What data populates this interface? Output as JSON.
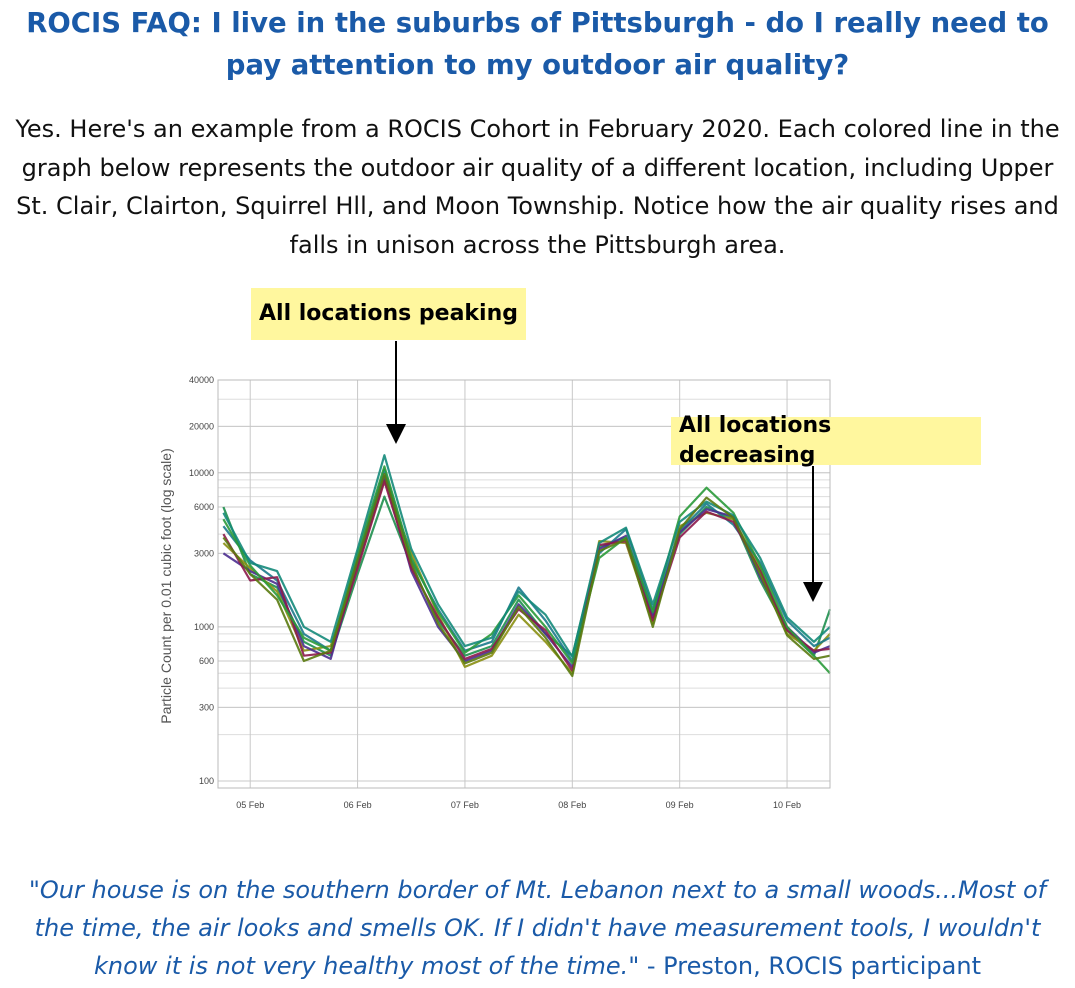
{
  "page": {
    "title": "ROCIS FAQ: I live in the suburbs of Pittsburgh - do I really need to pay attention to my outdoor air quality?",
    "intro": "Yes.  Here's an example from a ROCIS Cohort in February 2020. Each colored line in the graph below represents the outdoor air quality of a different location, including Upper St. Clair, Clairton, Squirrel Hll, and Moon Township.  Notice how the air quality rises and falls in unison across the Pittsburgh area.",
    "quote_text": "\"Our house is on the southern border of Mt. Lebanon next to a small woods...Most of the time, the air looks and smells OK.  If I didn't have measurement tools, I wouldn't know it is not very healthy most of the time.",
    "quote_attribution": "\" - Preston, ROCIS participant"
  },
  "annotations": {
    "peak_label": "All locations peaking",
    "decreasing_label": "All locations decreasing"
  },
  "chart_data": {
    "type": "line",
    "title": "",
    "xlabel": "",
    "ylabel": "Particle Count per 0.01 cubic foot (log scale)",
    "yscale": "log",
    "ylim": [
      90,
      40000
    ],
    "xlim_days": [
      4.7,
      10.4
    ],
    "y_tick_labels": [
      "100",
      "300",
      "600",
      "1000",
      "3000",
      "6000",
      "10000",
      "20000",
      "40000"
    ],
    "x_tick_labels": [
      "05 Feb",
      "06 Feb",
      "07 Feb",
      "08 Feb",
      "09 Feb",
      "10 Feb"
    ],
    "grid": true,
    "legend": "none",
    "colors": [
      "#1e8f4e",
      "#8a8f12",
      "#1b7a8c",
      "#4b2d8f",
      "#8c1a4b",
      "#2a9a3a",
      "#148a7a",
      "#5a7a10"
    ],
    "x": [
      4.75,
      5.0,
      5.25,
      5.5,
      5.75,
      6.0,
      6.25,
      6.5,
      6.75,
      7.0,
      7.25,
      7.5,
      7.75,
      8.0,
      8.25,
      8.5,
      8.75,
      9.0,
      9.25,
      9.5,
      9.75,
      10.0,
      10.25,
      10.4
    ],
    "series": [
      {
        "values": [
          6000,
          2200,
          1800,
          800,
          650,
          2200,
          7000,
          2500,
          1100,
          650,
          750,
          1500,
          900,
          650,
          3300,
          3800,
          1200,
          4000,
          6000,
          5000,
          2000,
          950,
          650,
          1300
        ]
      },
      {
        "values": [
          3500,
          2400,
          1700,
          700,
          750,
          2500,
          9000,
          3000,
          1200,
          550,
          650,
          1200,
          800,
          500,
          3600,
          3500,
          1050,
          4500,
          5500,
          5000,
          2400,
          900,
          700,
          900
        ]
      },
      {
        "values": [
          4500,
          2700,
          2000,
          900,
          700,
          2800,
          10500,
          2700,
          1300,
          700,
          800,
          1800,
          1100,
          600,
          3000,
          4300,
          1300,
          4200,
          6300,
          4600,
          2600,
          1100,
          750,
          850
        ]
      },
      {
        "values": [
          3000,
          2300,
          1900,
          750,
          620,
          2600,
          9500,
          2300,
          1000,
          600,
          700,
          1400,
          900,
          550,
          3200,
          3900,
          1150,
          4100,
          5800,
          5200,
          2100,
          1000,
          680,
          750
        ]
      },
      {
        "values": [
          4000,
          2000,
          2100,
          650,
          680,
          2400,
          8800,
          2400,
          1150,
          620,
          720,
          1300,
          950,
          520,
          3400,
          3600,
          1100,
          3800,
          5600,
          4800,
          2300,
          950,
          700,
          720
        ]
      },
      {
        "values": [
          5000,
          2500,
          1600,
          850,
          700,
          3000,
          11000,
          2800,
          1250,
          680,
          900,
          1600,
          1000,
          580,
          2800,
          3800,
          1250,
          5200,
          8000,
          5500,
          2500,
          1000,
          650,
          500
        ]
      },
      {
        "values": [
          5500,
          2600,
          2300,
          1000,
          800,
          3200,
          13000,
          3200,
          1400,
          750,
          850,
          1700,
          1200,
          640,
          3500,
          4400,
          1400,
          4800,
          6500,
          5300,
          2800,
          1150,
          800,
          1000
        ]
      },
      {
        "values": [
          3800,
          2200,
          1500,
          600,
          700,
          2700,
          9800,
          2600,
          1050,
          580,
          680,
          1350,
          850,
          480,
          3100,
          3700,
          1000,
          4300,
          6900,
          5100,
          2200,
          880,
          620,
          650
        ]
      }
    ]
  }
}
